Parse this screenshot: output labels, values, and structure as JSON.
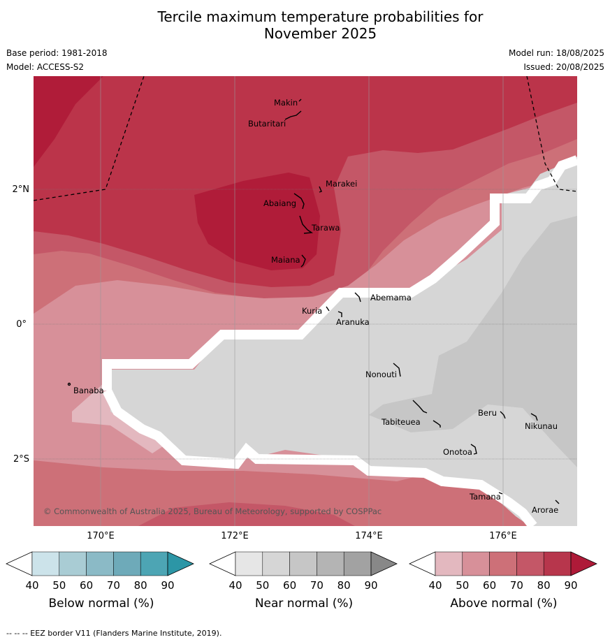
{
  "title": {
    "line1": "Tercile maximum temperature probabilities for",
    "line2": "November 2025"
  },
  "meta": {
    "base_period": "Base period: 1981-2018",
    "model": "Model: ACCESS-S2",
    "model_run": "Model run: 18/08/2025",
    "issued": "Issued: 20/08/2025"
  },
  "map": {
    "lat_labels": [
      "2°N",
      "0°",
      "2°S"
    ],
    "lon_labels": [
      "170°E",
      "172°E",
      "174°E",
      "176°E"
    ],
    "places": [
      "Makin",
      "Butaritari",
      "Marakei",
      "Abaiang",
      "Tarawa",
      "Maiana",
      "Abemama",
      "Kuria",
      "Aranuka",
      "Banaba",
      "Nonouti",
      "Tabiteuea",
      "Beru",
      "Nikunau",
      "Onotoa",
      "Tamana",
      "Arorae"
    ],
    "copyright": "© Commonwealth of Australia 2025, Bureau of Meteorology, supported by COSPPac"
  },
  "colorbars": [
    {
      "title": "Below normal (%)",
      "ticks": [
        "40",
        "50",
        "60",
        "70",
        "80",
        "90"
      ],
      "colors": [
        "#ffffff",
        "#cce3ea",
        "#a9ccd4",
        "#8bbac6",
        "#6eaab9",
        "#4da5b4",
        "#2c96a6"
      ]
    },
    {
      "title": "Near normal (%)",
      "ticks": [
        "40",
        "50",
        "60",
        "70",
        "80",
        "90"
      ],
      "colors": [
        "#ffffff",
        "#e6e6e6",
        "#d6d6d6",
        "#c6c6c6",
        "#b4b4b4",
        "#a2a2a2",
        "#888888"
      ]
    },
    {
      "title": "Above normal (%)",
      "ticks": [
        "40",
        "50",
        "60",
        "70",
        "80",
        "90"
      ],
      "colors": [
        "#ffffff",
        "#e3b8bf",
        "#d79099",
        "#cd7078",
        "#c45767",
        "#b7364c",
        "#ae1a38"
      ]
    }
  ],
  "footer": "--  --  -- EEZ border V11 (Flanders Marine Institute, 2019)."
}
